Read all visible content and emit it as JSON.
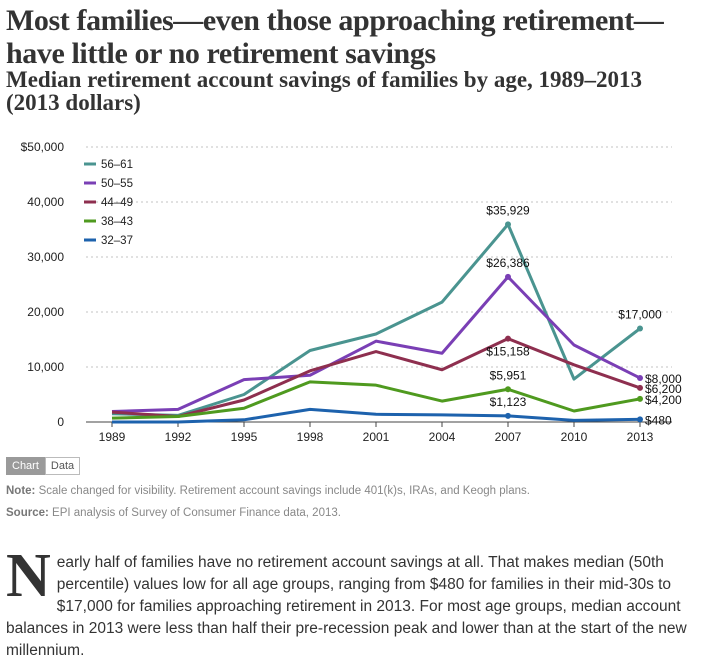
{
  "header": {
    "title": "Most families—even those approaching retirement—have little or no retirement savings",
    "subtitle": "Median retirement account savings of families by age, 1989–2013 (2013 dollars)"
  },
  "toggle": {
    "chart_label": "Chart",
    "data_label": "Data"
  },
  "notes": {
    "note_label": "Note:",
    "note_text": " Scale changed for visibility. Retirement account savings include 401(k)s, IRAs, and Keogh plans.",
    "source_label": "Source:",
    "source_text": " EPI analysis of  Survey of Consumer Finance data, 2013."
  },
  "article": {
    "dropcap": "N",
    "text": "early half of families have no retirement account savings at all. That makes median (50th percentile) values low for all age groups, ranging from $480 for families in their mid-30s to $17,000 for families approaching retirement in 2013. For most age groups, median account balances in 2013 were less than half their pre-recession peak and lower than at the start of the new millennium."
  },
  "chart_data": {
    "type": "line",
    "title": "Median retirement account savings of families by age, 1989–2013 (2013 dollars)",
    "xlabel": "",
    "ylabel": "",
    "x": [
      "1989",
      "1992",
      "1995",
      "1998",
      "2001",
      "2004",
      "2007",
      "2010",
      "2013"
    ],
    "ylim": [
      0,
      50000
    ],
    "yticks": [
      0,
      10000,
      20000,
      30000,
      40000,
      50000
    ],
    "ytick_labels": [
      "0",
      "10,000",
      "20,000",
      "30,000",
      "40,000",
      "$50,000"
    ],
    "grid": true,
    "legend_position": "top-left",
    "series": [
      {
        "name": "56–61",
        "color": "#4a9490",
        "values": [
          1500,
          1200,
          5000,
          13000,
          16000,
          21800,
          35929,
          7800,
          17000
        ]
      },
      {
        "name": "50–55",
        "color": "#7a3fb5",
        "values": [
          1900,
          2300,
          7700,
          8500,
          14700,
          12500,
          26386,
          14000,
          8000
        ]
      },
      {
        "name": "44–49",
        "color": "#8e2f4f",
        "values": [
          1800,
          1000,
          4000,
          9300,
          12800,
          9500,
          15158,
          10400,
          6200
        ]
      },
      {
        "name": "38–43",
        "color": "#4f9a1f",
        "values": [
          700,
          1000,
          2500,
          7300,
          6700,
          3800,
          5951,
          2000,
          4200
        ]
      },
      {
        "name": "32–37",
        "color": "#1d62ad",
        "values": [
          0,
          0,
          400,
          2300,
          1400,
          1300,
          1123,
          300,
          480
        ]
      }
    ],
    "annotations": [
      {
        "series": 0,
        "x": "2007",
        "label": "$35,929",
        "position": "above"
      },
      {
        "series": 1,
        "x": "2007",
        "label": "$26,386",
        "position": "above"
      },
      {
        "series": 2,
        "x": "2007",
        "label": "$15,158",
        "position": "below"
      },
      {
        "series": 3,
        "x": "2007",
        "label": "$5,951",
        "position": "above"
      },
      {
        "series": 4,
        "x": "2007",
        "label": "$1,123",
        "position": "above"
      },
      {
        "series": 0,
        "x": "2013",
        "label": "$17,000",
        "position": "above"
      },
      {
        "series": 1,
        "x": "2013",
        "label": "$8,000",
        "position": "right"
      },
      {
        "series": 2,
        "x": "2013",
        "label": "$6,200",
        "position": "right"
      },
      {
        "series": 3,
        "x": "2013",
        "label": "$4,200",
        "position": "right"
      },
      {
        "series": 4,
        "x": "2013",
        "label": "$480",
        "position": "right"
      }
    ]
  }
}
